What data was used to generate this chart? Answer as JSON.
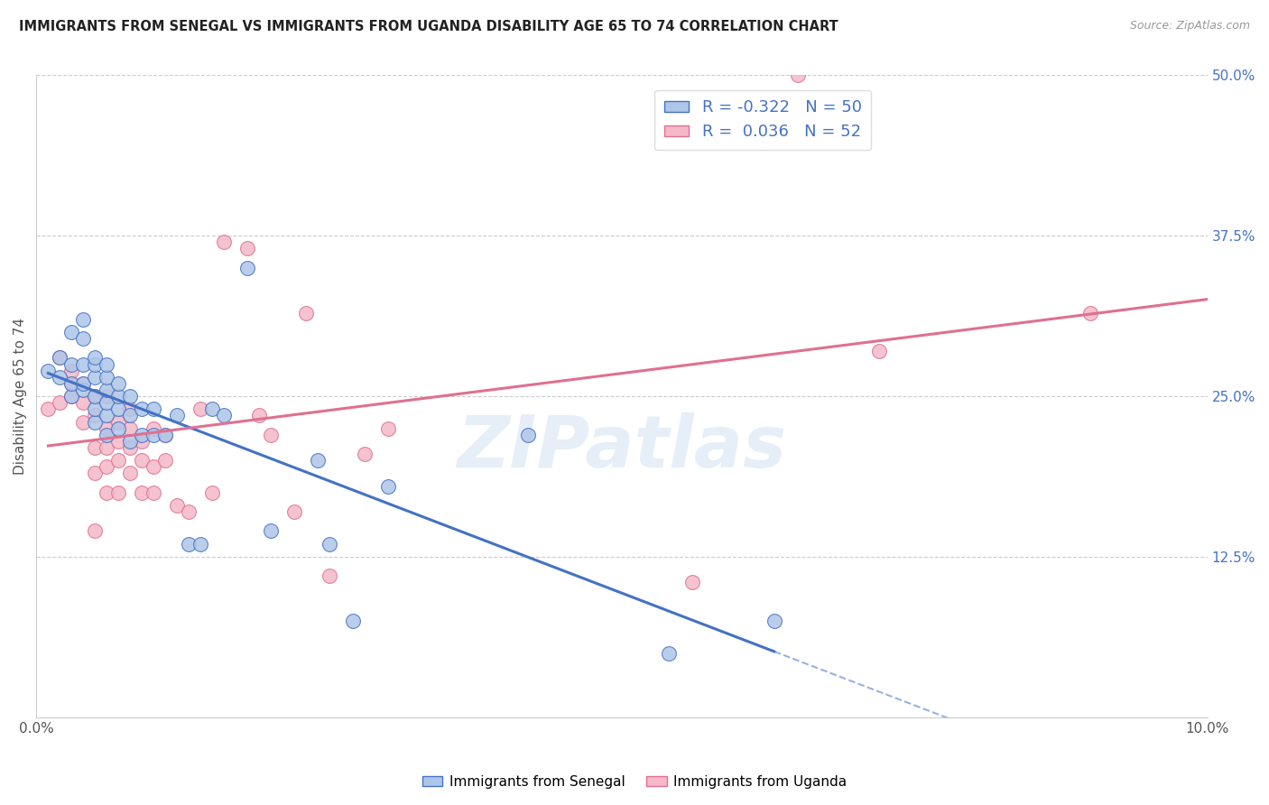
{
  "title": "IMMIGRANTS FROM SENEGAL VS IMMIGRANTS FROM UGANDA DISABILITY AGE 65 TO 74 CORRELATION CHART",
  "source": "Source: ZipAtlas.com",
  "ylabel": "Disability Age 65 to 74",
  "xlim": [
    0.0,
    0.1
  ],
  "ylim": [
    0.0,
    0.5
  ],
  "senegal_R": -0.322,
  "senegal_N": 50,
  "uganda_R": 0.036,
  "uganda_N": 52,
  "senegal_color": "#aec6e8",
  "uganda_color": "#f4b8c8",
  "senegal_line_color": "#4472c4",
  "uganda_line_color": "#e07090",
  "background_color": "#ffffff",
  "watermark": "ZIPatlas",
  "senegal_x": [
    0.001,
    0.002,
    0.002,
    0.003,
    0.003,
    0.003,
    0.003,
    0.004,
    0.004,
    0.004,
    0.004,
    0.004,
    0.005,
    0.005,
    0.005,
    0.005,
    0.005,
    0.005,
    0.006,
    0.006,
    0.006,
    0.006,
    0.006,
    0.006,
    0.007,
    0.007,
    0.007,
    0.007,
    0.008,
    0.008,
    0.008,
    0.009,
    0.009,
    0.01,
    0.01,
    0.011,
    0.012,
    0.013,
    0.014,
    0.015,
    0.016,
    0.018,
    0.02,
    0.024,
    0.025,
    0.027,
    0.03,
    0.042,
    0.054,
    0.063
  ],
  "senegal_y": [
    0.27,
    0.265,
    0.28,
    0.25,
    0.26,
    0.275,
    0.3,
    0.255,
    0.26,
    0.275,
    0.295,
    0.31,
    0.23,
    0.24,
    0.25,
    0.265,
    0.275,
    0.28,
    0.22,
    0.235,
    0.245,
    0.255,
    0.265,
    0.275,
    0.225,
    0.24,
    0.25,
    0.26,
    0.215,
    0.235,
    0.25,
    0.22,
    0.24,
    0.22,
    0.24,
    0.22,
    0.235,
    0.135,
    0.135,
    0.24,
    0.235,
    0.35,
    0.145,
    0.2,
    0.135,
    0.075,
    0.18,
    0.22,
    0.05,
    0.075
  ],
  "uganda_x": [
    0.001,
    0.002,
    0.002,
    0.003,
    0.003,
    0.003,
    0.004,
    0.004,
    0.004,
    0.005,
    0.005,
    0.005,
    0.005,
    0.005,
    0.006,
    0.006,
    0.006,
    0.006,
    0.006,
    0.007,
    0.007,
    0.007,
    0.007,
    0.008,
    0.008,
    0.008,
    0.008,
    0.009,
    0.009,
    0.009,
    0.01,
    0.01,
    0.01,
    0.011,
    0.011,
    0.012,
    0.013,
    0.014,
    0.015,
    0.016,
    0.018,
    0.019,
    0.02,
    0.022,
    0.023,
    0.025,
    0.028,
    0.03,
    0.056,
    0.065,
    0.072,
    0.09
  ],
  "uganda_y": [
    0.24,
    0.245,
    0.28,
    0.25,
    0.26,
    0.27,
    0.23,
    0.245,
    0.26,
    0.145,
    0.19,
    0.21,
    0.235,
    0.25,
    0.175,
    0.195,
    0.21,
    0.225,
    0.25,
    0.175,
    0.2,
    0.215,
    0.23,
    0.19,
    0.21,
    0.225,
    0.24,
    0.175,
    0.2,
    0.215,
    0.175,
    0.195,
    0.225,
    0.2,
    0.22,
    0.165,
    0.16,
    0.24,
    0.175,
    0.37,
    0.365,
    0.235,
    0.22,
    0.16,
    0.315,
    0.11,
    0.205,
    0.225,
    0.105,
    0.5,
    0.285,
    0.315
  ]
}
